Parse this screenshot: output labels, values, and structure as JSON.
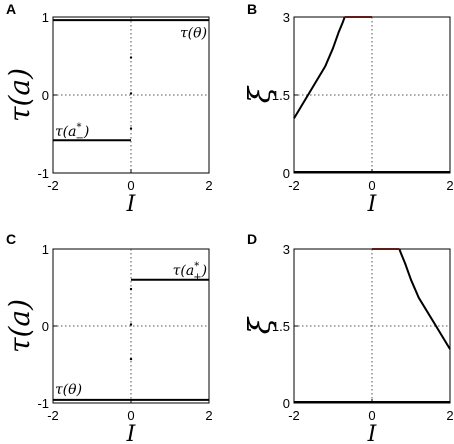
{
  "chart_data": [
    {
      "panel": "A",
      "type": "line",
      "xlabel": "I",
      "ylabel": "τ(a)",
      "xlim": [
        -2,
        2
      ],
      "ylim": [
        -1,
        1
      ],
      "xticks": [
        "-2",
        "0",
        "2"
      ],
      "yticks": [
        "-1",
        "0",
        "1"
      ],
      "series": [
        {
          "name": "τ(θ)",
          "color": "#000000",
          "x": [
            -2,
            2
          ],
          "y": [
            0.96,
            0.96
          ]
        },
        {
          "name": "τ(a*₋)",
          "color": "#000000",
          "x": [
            -2,
            0
          ],
          "y": [
            -0.58,
            -0.58
          ]
        }
      ],
      "dots": {
        "x": [
          0,
          0,
          0
        ],
        "y": [
          0.48,
          0.02,
          -0.43
        ]
      },
      "annotations": [
        {
          "label_main": "τ(θ)",
          "x": 1.95,
          "y": 0.8,
          "anchor": "end"
        },
        {
          "label_main": "τ(a",
          "sup": "*",
          "sub": "−",
          "close": ")",
          "x": -1.95,
          "y": -0.46,
          "anchor": "start"
        }
      ]
    },
    {
      "panel": "B",
      "type": "line",
      "xlabel": "I",
      "ylabel": "ξ",
      "xlim": [
        -2,
        2
      ],
      "ylim": [
        0,
        3
      ],
      "xticks": [
        "-2",
        "0",
        "2"
      ],
      "yticks": [
        "0",
        "1.5",
        "3"
      ],
      "series": [
        {
          "name": "",
          "color": "#000000",
          "x": [
            -2,
            2
          ],
          "y": [
            0.02,
            0.02
          ]
        },
        {
          "name": "",
          "color": "#000000",
          "x": [
            -2,
            -1.6,
            -1.2,
            -1.0,
            -0.85,
            -0.75,
            -0.7
          ],
          "y": [
            1.05,
            1.55,
            2.05,
            2.4,
            2.72,
            2.9,
            3.0
          ]
        },
        {
          "name": "",
          "color": "#c0392b",
          "x": [
            -0.7,
            0
          ],
          "y": [
            3.0,
            3.0
          ]
        }
      ],
      "dots": {
        "x": [],
        "y": []
      },
      "annotations": []
    },
    {
      "panel": "C",
      "type": "line",
      "xlabel": "I",
      "ylabel": "τ(a)",
      "xlim": [
        -2,
        2
      ],
      "ylim": [
        -1,
        1
      ],
      "xticks": [
        "-2",
        "0",
        "2"
      ],
      "yticks": [
        "-1",
        "0",
        "1"
      ],
      "series": [
        {
          "name": "τ(θ)",
          "color": "#000000",
          "x": [
            -2,
            2
          ],
          "y": [
            -0.96,
            -0.96
          ]
        },
        {
          "name": "τ(a*₊)",
          "color": "#000000",
          "x": [
            0,
            2
          ],
          "y": [
            0.6,
            0.6
          ]
        }
      ],
      "dots": {
        "x": [
          0,
          0,
          0
        ],
        "y": [
          0.48,
          0.02,
          -0.43
        ]
      },
      "annotations": [
        {
          "label_main": "τ(θ)",
          "x": -1.95,
          "y": -0.82,
          "anchor": "start"
        },
        {
          "label_main": "τ(a",
          "sup": "*",
          "sub": "+",
          "close": ")",
          "x": 1.95,
          "y": 0.73,
          "anchor": "end"
        }
      ]
    },
    {
      "panel": "D",
      "type": "line",
      "xlabel": "I",
      "ylabel": "ξ",
      "xlim": [
        -2,
        2
      ],
      "ylim": [
        0,
        3
      ],
      "xticks": [
        "-2",
        "0",
        "2"
      ],
      "yticks": [
        "0",
        "1.5",
        "3"
      ],
      "series": [
        {
          "name": "",
          "color": "#000000",
          "x": [
            -2,
            2
          ],
          "y": [
            0.02,
            0.02
          ]
        },
        {
          "name": "",
          "color": "#000000",
          "x": [
            0.7,
            0.75,
            0.85,
            1.0,
            1.2,
            1.6,
            2.0
          ],
          "y": [
            3.0,
            2.9,
            2.72,
            2.4,
            2.05,
            1.55,
            1.05
          ]
        },
        {
          "name": "",
          "color": "#c0392b",
          "x": [
            0,
            0.7
          ],
          "y": [
            3.0,
            3.0
          ]
        }
      ],
      "dots": {
        "x": [],
        "y": []
      },
      "annotations": []
    }
  ]
}
